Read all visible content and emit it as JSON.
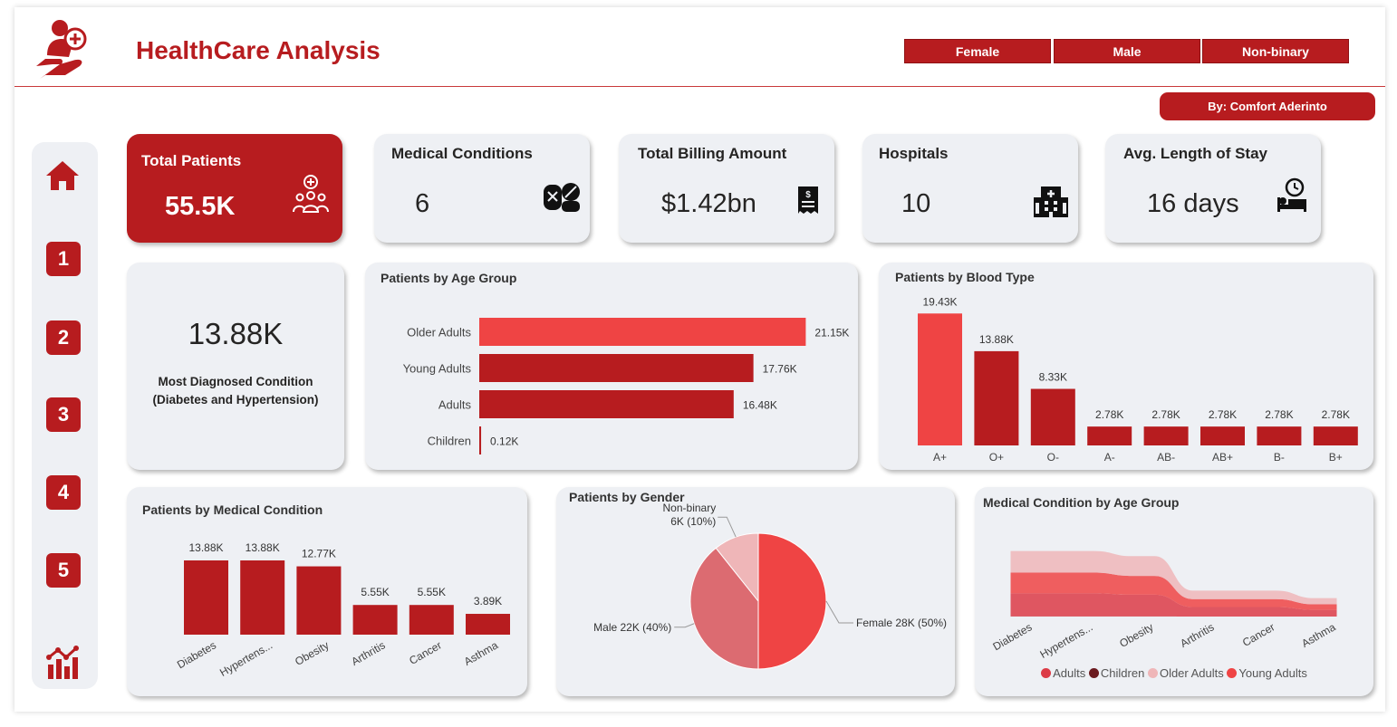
{
  "header": {
    "title": "HealthCare Analysis",
    "gender_buttons": [
      "Female",
      "Male",
      "Non-binary"
    ],
    "author": "By: Comfort Aderinto"
  },
  "icons": {
    "logo": "patient-care-icon",
    "home": "home-icon",
    "analytics": "bar-chart-icon"
  },
  "sidebar": {
    "items": [
      "1",
      "2",
      "3",
      "4",
      "5"
    ]
  },
  "kpis": {
    "total_patients": {
      "label": "Total Patients",
      "value": "55.5K"
    },
    "medical_conditions": {
      "label": "Medical Conditions",
      "value": "6"
    },
    "total_billing": {
      "label": "Total Billing Amount",
      "value": "$1.42bn"
    },
    "hospitals": {
      "label": "Hospitals",
      "value": "10"
    },
    "avg_stay": {
      "label": "Avg. Length of Stay",
      "value": "16 days"
    }
  },
  "most_diagnosed": {
    "value": "13.88K",
    "line1": "Most Diagnosed Condition",
    "line2": "(Diabetes and Hypertension)"
  },
  "colors": {
    "brand": "#b71c1f",
    "accent": "#ef4444",
    "panel": "#eef0f4"
  },
  "chart_data": [
    {
      "type": "bar",
      "orientation": "horizontal",
      "title": "Patients by Age Group",
      "categories": [
        "Older Adults",
        "Young Adults",
        "Adults",
        "Children"
      ],
      "values": [
        21.15,
        17.76,
        16.48,
        0.12
      ],
      "labels": [
        "21.15K",
        "17.76K",
        "16.48K",
        "0.12K"
      ],
      "xlim": [
        0,
        25
      ]
    },
    {
      "type": "bar",
      "title": "Patients by Blood Type",
      "categories": [
        "A+",
        "O+",
        "O-",
        "A-",
        "AB-",
        "AB+",
        "B-",
        "B+"
      ],
      "values": [
        19.43,
        13.88,
        8.33,
        2.78,
        2.78,
        2.78,
        2.78,
        2.78
      ],
      "labels": [
        "19.43K",
        "13.88K",
        "8.33K",
        "2.78K",
        "2.78K",
        "2.78K",
        "2.78K",
        "2.78K"
      ],
      "ylim": [
        0,
        20
      ]
    },
    {
      "type": "bar",
      "title": "Patients by Medical Condition",
      "categories": [
        "Diabetes",
        "Hypertens...",
        "Obesity",
        "Arthritis",
        "Cancer",
        "Asthma"
      ],
      "values": [
        13.88,
        13.88,
        12.77,
        5.55,
        5.55,
        3.89
      ],
      "labels": [
        "13.88K",
        "13.88K",
        "12.77K",
        "5.55K",
        "5.55K",
        "3.89K"
      ],
      "ylim": [
        0,
        15
      ]
    },
    {
      "type": "pie",
      "title": "Patients by Gender",
      "categories": [
        "Female",
        "Male",
        "Non-binary"
      ],
      "values": [
        28,
        22,
        6
      ],
      "labels": [
        "Female 28K (50%)",
        "Male 22K (40%)",
        "Non-binary 6K (10%)"
      ],
      "colors": [
        "#ef4444",
        "#dc6b71",
        "#efb6b8"
      ]
    },
    {
      "type": "area",
      "title": "Medical Condition by Age Group",
      "categories": [
        "Diabetes",
        "Hypertens...",
        "Obesity",
        "Arthritis",
        "Cancer",
        "Asthma"
      ],
      "series": [
        {
          "name": "Adults",
          "values": [
            4.9,
            4.9,
            4.6,
            2.0,
            2.0,
            1.4
          ]
        },
        {
          "name": "Children",
          "values": [
            0.03,
            0.03,
            0.03,
            0.01,
            0.01,
            0.01
          ]
        },
        {
          "name": "Older Adults",
          "values": [
            4.6,
            4.6,
            4.2,
            1.8,
            1.8,
            1.3
          ]
        },
        {
          "name": "Young Adults",
          "values": [
            4.4,
            4.4,
            4.0,
            1.7,
            1.7,
            1.2
          ]
        }
      ],
      "legend": "bottom",
      "series_colors": [
        "#dc3b46",
        "#6b1a1f",
        "#efb6b8",
        "#ef4444"
      ]
    }
  ]
}
